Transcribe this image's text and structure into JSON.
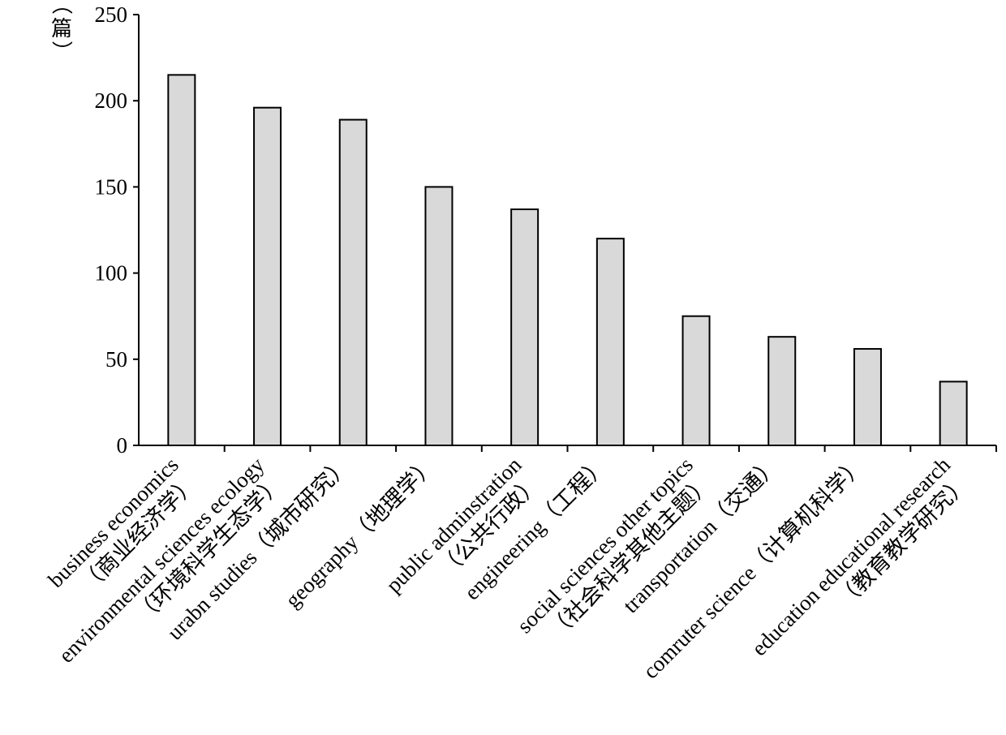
{
  "chart_data": {
    "type": "bar",
    "title": "",
    "xlabel": "",
    "ylabel": "（篇）",
    "ylabel_chars": [
      "（",
      "篇",
      "）"
    ],
    "ylim": [
      0,
      250
    ],
    "yticks": [
      0,
      50,
      100,
      150,
      200,
      250
    ],
    "ytick_labels": [
      "0",
      "50",
      "100",
      "150",
      "200",
      "250"
    ],
    "grid": false,
    "legend": "none",
    "bar_color": "#d9d9d9",
    "edge_color": "#000000",
    "categories": [
      {
        "line1": "business economics",
        "line2": "（商业经济学）",
        "value": 215
      },
      {
        "line1": "environmental sciences ecology",
        "line2": "（环境科学生态学）",
        "value": 196
      },
      {
        "line1": "urabn studies（城市研究）",
        "line2": "",
        "value": 189
      },
      {
        "line1": "geography（地理学）",
        "line2": "",
        "value": 150
      },
      {
        "line1": "public adminstration",
        "line2": "（公共行政）",
        "value": 137
      },
      {
        "line1": "engineering（工程）",
        "line2": "",
        "value": 120
      },
      {
        "line1": "social sciences other topics",
        "line2": "（社会科学其他主题）",
        "value": 75
      },
      {
        "line1": "transportation（交通）",
        "line2": "",
        "value": 63
      },
      {
        "line1": "comruter science（计算机科学）",
        "line2": "",
        "value": 56
      },
      {
        "line1": "education educational research",
        "line2": "（教育教学研究）",
        "value": 37
      }
    ]
  }
}
